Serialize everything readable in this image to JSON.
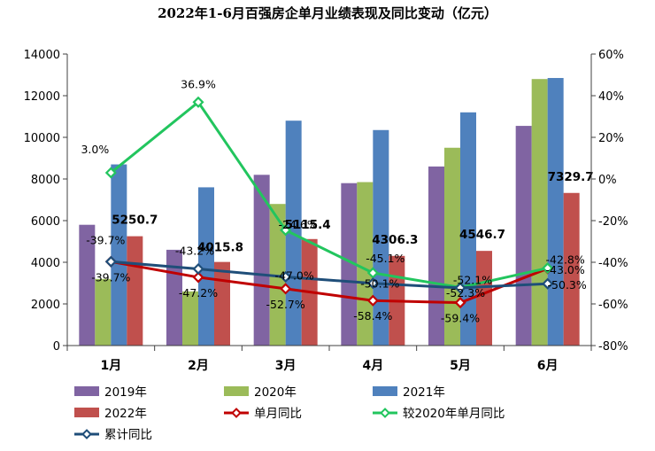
{
  "chart_data": {
    "type": "bar",
    "title": "2022年1-6月百强房企单月业绩表现及同比变动（亿元）",
    "categories": [
      "1月",
      "2月",
      "3月",
      "4月",
      "5月",
      "6月"
    ],
    "ylim_left": [
      0,
      14000
    ],
    "ylim_right": [
      -80,
      60
    ],
    "left_ticks": [
      "0",
      "2000",
      "4000",
      "6000",
      "8000",
      "10000",
      "12000",
      "14000"
    ],
    "right_ticks": [
      "-80%",
      "-60%",
      "-40%",
      "-20%",
      "0%",
      "20%",
      "40%",
      "60%"
    ],
    "series": [
      {
        "name": "2019年",
        "kind": "bar",
        "color": "#8064A2",
        "values": [
          5800,
          4600,
          8200,
          7800,
          8600,
          10550
        ]
      },
      {
        "name": "2020年",
        "kind": "bar",
        "color": "#9BBB59",
        "values": [
          3200,
          2600,
          6800,
          7850,
          9500,
          12800
        ]
      },
      {
        "name": "2021年",
        "kind": "bar",
        "color": "#4F81BD",
        "values": [
          8700,
          7600,
          10800,
          10350,
          11200,
          12850
        ]
      },
      {
        "name": "2022年",
        "kind": "bar",
        "color": "#C0504D",
        "values": [
          5250.7,
          4015.8,
          5115.4,
          4306.3,
          4546.7,
          7329.7
        ],
        "labels": [
          "5250.7",
          "4015.8",
          "5115.4",
          "4306.3",
          "4546.7",
          "7329.7"
        ]
      },
      {
        "name": "单月同比",
        "kind": "line",
        "color": "#C00000",
        "values": [
          -39.7,
          -47.2,
          -52.7,
          -58.4,
          -59.4,
          -43.0
        ],
        "labels": [
          "-39.7%",
          "-47.2%",
          "-52.7%",
          "-58.4%",
          "-59.4%",
          "-43.0%"
        ]
      },
      {
        "name": "较2020年单月同比",
        "kind": "line",
        "color": "#22C55E",
        "values": [
          3.0,
          36.9,
          -24.6,
          -45.1,
          -52.1,
          -42.8
        ],
        "labels": [
          "3.0%",
          "36.9%",
          "-24.6%",
          "-45.1%",
          "-52.1%",
          "-42.8%"
        ]
      },
      {
        "name": "累计同比",
        "kind": "line",
        "color": "#1F4E79",
        "values": [
          -39.7,
          -43.2,
          -47.0,
          -50.1,
          -52.3,
          -50.3
        ],
        "labels": [
          "-39.7%",
          "-43.2%",
          "-47.0%",
          "-50.1%",
          "-52.3%",
          "-50.3%"
        ]
      }
    ]
  }
}
